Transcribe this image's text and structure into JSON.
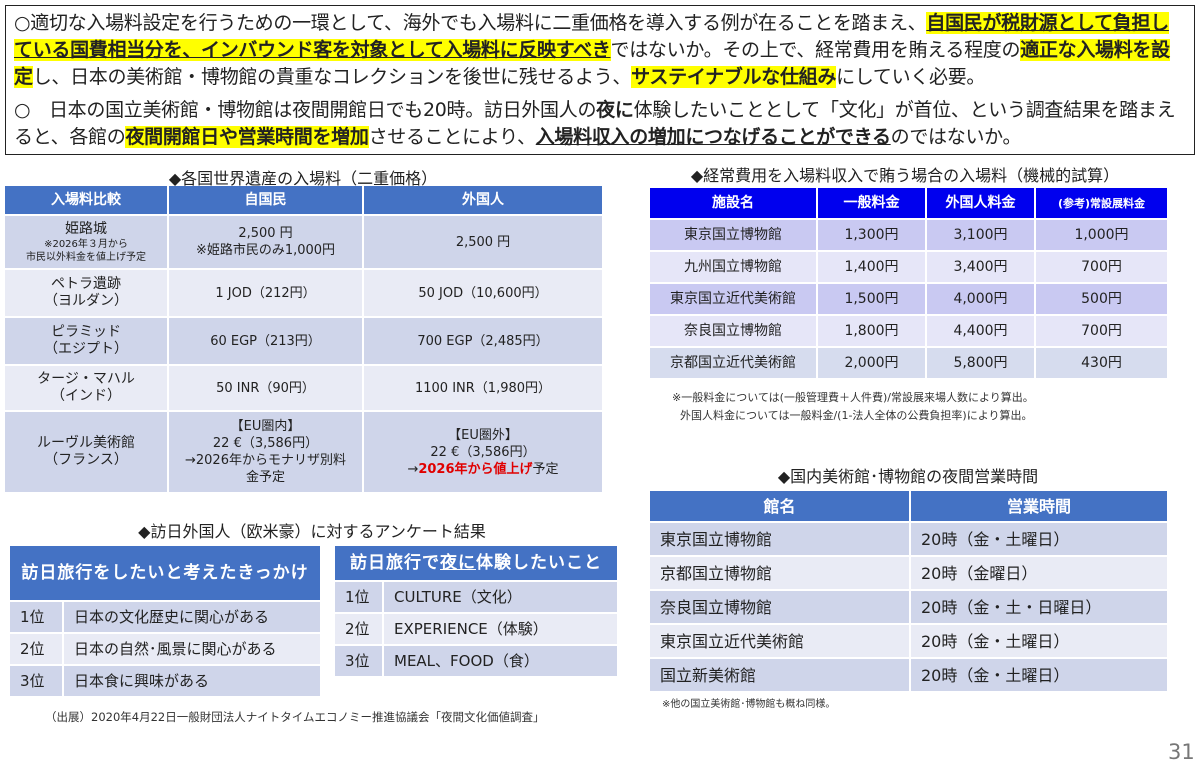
{
  "summary": {
    "paragraph1": [
      {
        "text": "○適切な入場料設定を行うための一環として、海外でも入場料に二重価格を導入する例が在ることを踏まえ、",
        "style": ""
      },
      {
        "text": "自国民が税財源として負担している国費相当分を、インバウンド客を対象として入場料に反映すべき",
        "style": "hl ul"
      },
      {
        "text": "ではないか。その上で、経常費用を賄える程度の",
        "style": ""
      },
      {
        "text": "適正な入場料を設定",
        "style": "hl"
      },
      {
        "text": "し、日本の美術館・博物館の貴重なコレクションを後世に残せるよう、",
        "style": ""
      },
      {
        "text": "サステイナブルな仕組み",
        "style": "hl"
      },
      {
        "text": "にしていく必要。",
        "style": ""
      }
    ],
    "paragraph2": [
      {
        "text": "○　日本の国立美術館・博物館は夜間開館日でも20時。訪日外国人の",
        "style": ""
      },
      {
        "text": "夜に",
        "style": "bd"
      },
      {
        "text": "体験したいこととして「文化」が首位、という調査結果を踏まえると、各館の",
        "style": ""
      },
      {
        "text": "夜間開館日や営業時間を増加",
        "style": "hl"
      },
      {
        "text": "させることにより、",
        "style": ""
      },
      {
        "text": "入場料収入の増加につなげることができる",
        "style": "bd ul"
      },
      {
        "text": "のではないか。",
        "style": ""
      }
    ]
  },
  "world_heritage": {
    "title": "◆各国世界遺産の入場料（二重価格）",
    "headers": [
      "入場料比較",
      "自国民",
      "外国人"
    ],
    "rows": [
      {
        "name": "姫路城",
        "note": "※2026年３月から",
        "note2": "市民以外料金を値上げ予定",
        "domestic": "2,500 円",
        "domestic2": "※姫路市民のみ1,000円",
        "foreign": "2,500 円"
      },
      {
        "name": "ペトラ遺跡",
        "country": "（ヨルダン）",
        "domestic": "1 JOD（212円）",
        "foreign": "50 JOD（10,600円）"
      },
      {
        "name": "ピラミッド",
        "country": "（エジプト）",
        "domestic": "60 EGP（213円）",
        "foreign": "700 EGP（2,485円）"
      },
      {
        "name": "タージ・マハル",
        "country": "（インド）",
        "domestic": "50 INR（90円）",
        "foreign": "1100 INR（1,980円）"
      },
      {
        "name": "ルーヴル美術館",
        "country": "（フランス）",
        "domestic": "【EU圏内】",
        "domestic2": "22 €（3,586円）",
        "domestic3": "→2026年からモナリザ別料金予定",
        "foreign": "【EU圏外】",
        "foreign2": "22 €（3,586円）",
        "foreign3_arrow": "→",
        "foreign3_red": "2026年から値上げ",
        "foreign3_rest": "予定"
      }
    ]
  },
  "cost_table": {
    "title": "◆経常費用を入場料収入で賄う場合の入場料（機械的試算）",
    "headers": [
      "施設名",
      "一般料金",
      "外国人料金",
      "(参考)常設展料金"
    ],
    "rows": [
      [
        "東京国立博物館",
        "1,300円",
        "3,100円",
        "1,000円"
      ],
      [
        "九州国立博物館",
        "1,400円",
        "3,400円",
        "700円"
      ],
      [
        "東京国立近代美術館",
        "1,500円",
        "4,000円",
        "500円"
      ],
      [
        "奈良国立博物館",
        "1,800円",
        "4,400円",
        "700円"
      ],
      [
        "京都国立近代美術館",
        "2,000円",
        "5,800円",
        "430円"
      ]
    ],
    "note1": "※一般料金については(一般管理費＋人件費)/常設展来場人数により算出。",
    "note2": "外国人料金については一般料金/(1-法人全体の公費負担率)により算出。"
  },
  "night_hours": {
    "title": "◆国内美術館･博物館の夜間営業時間",
    "headers": [
      "館名",
      "営業時間"
    ],
    "rows": [
      [
        "東京国立博物館",
        "20時（金・土曜日）"
      ],
      [
        "京都国立博物館",
        "20時（金曜日）"
      ],
      [
        "奈良国立博物館",
        "20時（金・土・日曜日）"
      ],
      [
        "東京国立近代美術館",
        "20時（金・土曜日）"
      ],
      [
        "国立新美術館",
        "20時（金・土曜日）"
      ]
    ],
    "note": "※他の国立美術館･博物館も概ね同様。"
  },
  "survey": {
    "title": "◆訪日外国人（欧米豪）に対するアンケート結果",
    "reasons": {
      "header": "訪日旅行をしたいと考えたきっかけ",
      "rows": [
        [
          "1位",
          "日本の文化歴史に関心がある"
        ],
        [
          "2位",
          "日本の自然･風景に関心がある"
        ],
        [
          "3位",
          "日本食に興味がある"
        ]
      ]
    },
    "night": {
      "header_pre": "訪日旅行で",
      "header_ul": "夜に",
      "header_post": "体験したいこと",
      "rows": [
        [
          "1位",
          "CULTURE（文化）"
        ],
        [
          "2位",
          "EXPERIENCE（体験）"
        ],
        [
          "3位",
          "MEAL、FOOD（食）"
        ]
      ]
    },
    "source": "（出展）2020年4月22日一般財団法人ナイトタイムエコノミー推進協議会「夜間文化価値調査」"
  },
  "page_number": "31"
}
